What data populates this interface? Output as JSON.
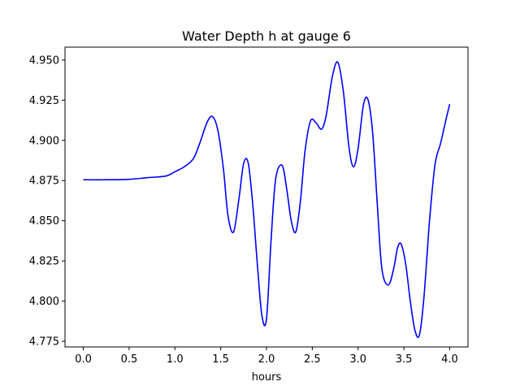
{
  "chart_data": {
    "type": "line",
    "title": "Water Depth h at gauge 6",
    "xlabel": "hours",
    "ylabel": "",
    "xlim": [
      -0.2,
      4.2
    ],
    "ylim": [
      4.7715,
      4.958
    ],
    "xticks": [
      0.0,
      0.5,
      1.0,
      1.5,
      2.0,
      2.5,
      3.0,
      3.5,
      4.0
    ],
    "xtick_labels": [
      "0.0",
      "0.5",
      "1.0",
      "1.5",
      "2.0",
      "2.5",
      "3.0",
      "3.5",
      "4.0"
    ],
    "yticks": [
      4.775,
      4.8,
      4.825,
      4.85,
      4.875,
      4.9,
      4.925,
      4.95
    ],
    "ytick_labels": [
      "4.775",
      "4.800",
      "4.825",
      "4.850",
      "4.875",
      "4.900",
      "4.925",
      "4.950"
    ],
    "grid": false,
    "series": [
      {
        "name": "",
        "color": "#0000ff",
        "x": [
          0.0,
          0.25,
          0.5,
          0.7,
          0.9,
          1.0,
          1.1,
          1.2,
          1.27,
          1.35,
          1.41,
          1.47,
          1.53,
          1.58,
          1.64,
          1.7,
          1.75,
          1.8,
          1.85,
          1.9,
          1.95,
          2.0,
          2.05,
          2.1,
          2.17,
          2.22,
          2.27,
          2.32,
          2.37,
          2.42,
          2.48,
          2.54,
          2.6,
          2.65,
          2.72,
          2.78,
          2.84,
          2.9,
          2.95,
          3.0,
          3.06,
          3.11,
          3.16,
          3.21,
          3.26,
          3.33,
          3.39,
          3.43,
          3.47,
          3.52,
          3.57,
          3.62,
          3.67,
          3.72,
          3.78,
          3.84,
          3.9,
          3.96,
          4.0
        ],
        "y": [
          4.8755,
          4.8755,
          4.8758,
          4.8768,
          4.8778,
          4.8805,
          4.8835,
          4.8885,
          4.898,
          4.911,
          4.9148,
          4.906,
          4.882,
          4.853,
          4.843,
          4.864,
          4.8855,
          4.886,
          4.86,
          4.823,
          4.791,
          4.789,
          4.838,
          4.876,
          4.8845,
          4.87,
          4.85,
          4.843,
          4.862,
          4.893,
          4.912,
          4.911,
          4.907,
          4.915,
          4.94,
          4.9485,
          4.93,
          4.896,
          4.8835,
          4.895,
          4.9225,
          4.925,
          4.904,
          4.86,
          4.82,
          4.81,
          4.8205,
          4.833,
          4.8355,
          4.823,
          4.8,
          4.782,
          4.779,
          4.803,
          4.85,
          4.885,
          4.898,
          4.913,
          4.9225
        ]
      }
    ]
  }
}
